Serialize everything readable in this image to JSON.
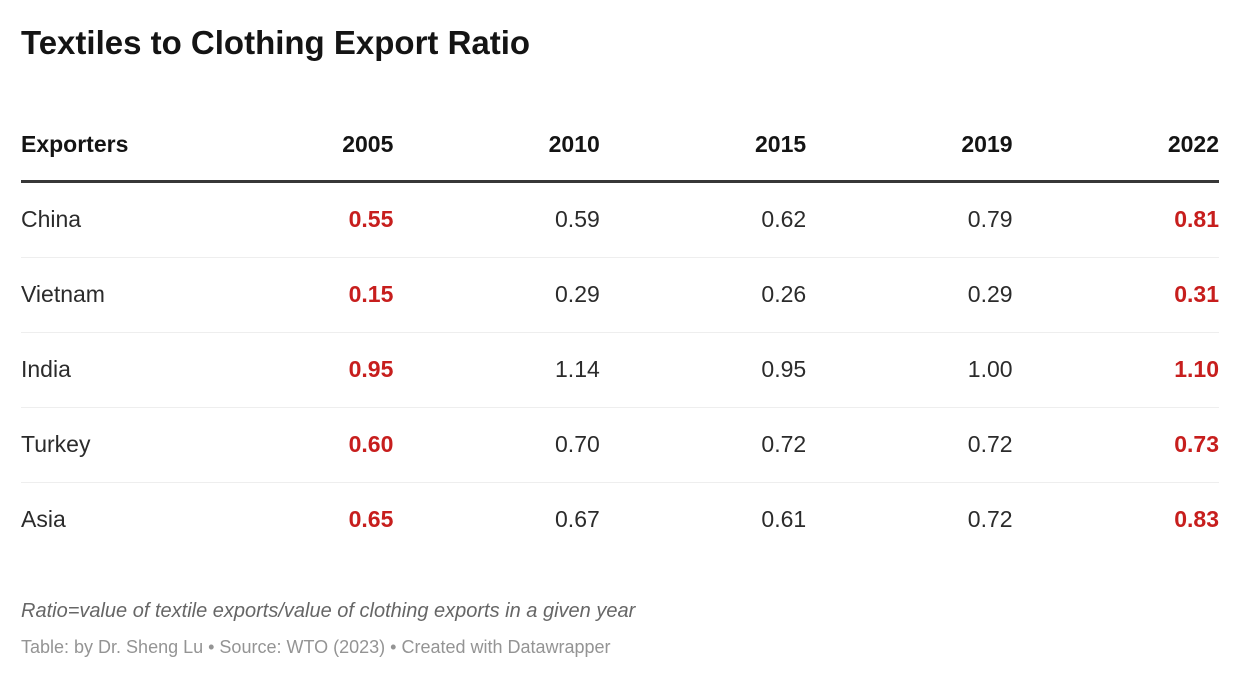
{
  "title": "Textiles to Clothing Export Ratio",
  "table": {
    "columns": [
      "Exporters",
      "2005",
      "2010",
      "2015",
      "2019",
      "2022"
    ],
    "rows": [
      {
        "exporter": "China",
        "values": [
          "0.55",
          "0.59",
          "0.62",
          "0.79",
          "0.81"
        ]
      },
      {
        "exporter": "Vietnam",
        "values": [
          "0.15",
          "0.29",
          "0.26",
          "0.29",
          "0.31"
        ]
      },
      {
        "exporter": "India",
        "values": [
          "0.95",
          "1.14",
          "0.95",
          "1.00",
          "1.10"
        ]
      },
      {
        "exporter": "Turkey",
        "values": [
          "0.60",
          "0.70",
          "0.72",
          "0.72",
          "0.73"
        ]
      },
      {
        "exporter": "Asia",
        "values": [
          "0.65",
          "0.67",
          "0.61",
          "0.72",
          "0.83"
        ]
      }
    ],
    "highlighted_year_columns": [
      "2005",
      "2022"
    ]
  },
  "footnote": "Ratio=value of textile exports/value of clothing exports in a given year",
  "attribution": "Table: by Dr. Sheng Lu • Source: WTO (2023) • Created with Datawrapper",
  "colors": {
    "highlight_red": "#c71e1d",
    "title_text": "#141414",
    "body_text": "#2b2b2b",
    "header_rule": "#383838",
    "row_divider": "#eeeeee",
    "footnote_text": "#666666",
    "attribution_text": "#949494"
  },
  "chart_data": {
    "type": "table",
    "title": "Textiles to Clothing Export Ratio",
    "row_label_header": "Exporters",
    "categories": [
      "2005",
      "2010",
      "2015",
      "2019",
      "2022"
    ],
    "series": [
      {
        "name": "China",
        "values": [
          0.55,
          0.59,
          0.62,
          0.79,
          0.81
        ]
      },
      {
        "name": "Vietnam",
        "values": [
          0.15,
          0.29,
          0.26,
          0.29,
          0.31
        ]
      },
      {
        "name": "India",
        "values": [
          0.95,
          1.14,
          0.95,
          1.0,
          1.1
        ]
      },
      {
        "name": "Turkey",
        "values": [
          0.6,
          0.7,
          0.72,
          0.72,
          0.73
        ]
      },
      {
        "name": "Asia",
        "values": [
          0.65,
          0.67,
          0.61,
          0.72,
          0.83
        ]
      }
    ],
    "highlighted_columns": [
      "2005",
      "2022"
    ],
    "footnote": "Ratio=value of textile exports/value of clothing exports in a given year",
    "source": "WTO (2023)",
    "tool": "Datawrapper"
  }
}
